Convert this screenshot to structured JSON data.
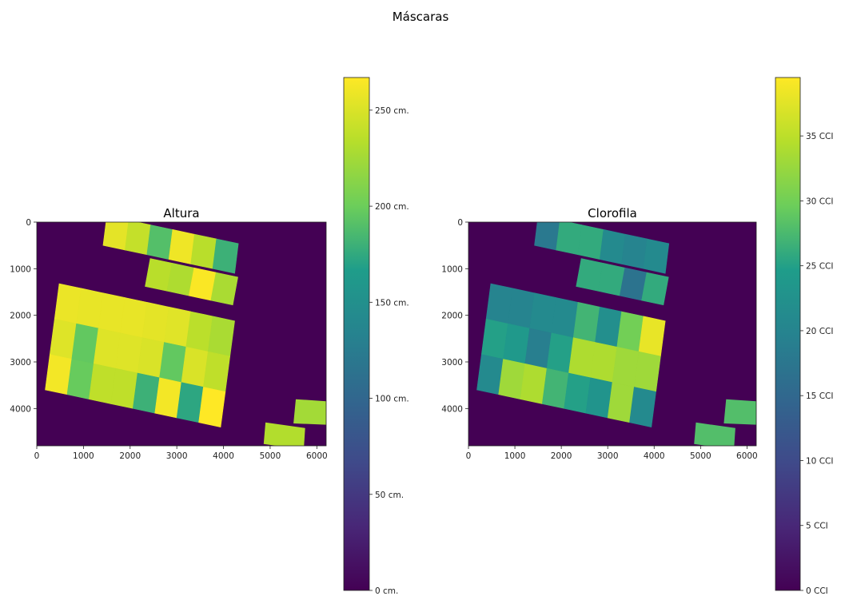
{
  "figure": {
    "title": "Máscaras"
  },
  "colors": {
    "background": "#440154",
    "viridis_stops": [
      "#440154",
      "#482777",
      "#3f4a8a",
      "#31678e",
      "#26838f",
      "#1f9d8a",
      "#6cce5a",
      "#b6de2b",
      "#fee825"
    ]
  },
  "chart_data": [
    {
      "type": "heatmap",
      "title": "Altura",
      "xlabel": "",
      "ylabel": "",
      "xlim": [
        0,
        6200
      ],
      "ylim": [
        4800,
        0
      ],
      "x_ticks": [
        "0",
        "1000",
        "2000",
        "3000",
        "4000",
        "5000",
        "6000"
      ],
      "y_ticks": [
        "0",
        "1000",
        "2000",
        "3000",
        "4000"
      ],
      "colorbar": {
        "range": [
          0,
          267
        ],
        "ticks": [
          {
            "value": 0,
            "label": "0  cm."
          },
          {
            "value": 50,
            "label": "50  cm."
          },
          {
            "value": 100,
            "label": "100 cm."
          },
          {
            "value": 150,
            "label": "150 cm."
          },
          {
            "value": 200,
            "label": "200 cm."
          },
          {
            "value": 250,
            "label": "250  cm."
          }
        ]
      },
      "top_block": [
        [
          255,
          240,
          190,
          260,
          235,
          180
        ],
        [
          235,
          230,
          265,
          228
        ]
      ],
      "main_block": [
        [
          258,
          257,
          257,
          257,
          255,
          253,
          236,
          228
        ],
        [
          252,
          196,
          252,
          252,
          250,
          196,
          250,
          238
        ],
        [
          262,
          198,
          238,
          238,
          180,
          262,
          173,
          268
        ]
      ],
      "side_plots": [
        225,
        232
      ]
    },
    {
      "type": "heatmap",
      "title": "Clorofila",
      "xlabel": "",
      "ylabel": "",
      "xlim": [
        0,
        6200
      ],
      "ylim": [
        4800,
        0
      ],
      "x_ticks": [
        "0",
        "1000",
        "2000",
        "3000",
        "4000",
        "5000",
        "6000"
      ],
      "y_ticks": [
        "0",
        "1000",
        "2000",
        "3000",
        "4000"
      ],
      "colorbar": {
        "range": [
          0,
          39.5
        ],
        "ticks": [
          {
            "value": 0,
            "label": "0 CCI"
          },
          {
            "value": 5,
            "label": "5  CCI"
          },
          {
            "value": 10,
            "label": "10 CCI"
          },
          {
            "value": 15,
            "label": "15 CCI"
          },
          {
            "value": 20,
            "label": "20 CCI"
          },
          {
            "value": 25,
            "label": "25 CCI"
          },
          {
            "value": 30,
            "label": "30 CCI"
          },
          {
            "value": 35,
            "label": "35 CCI"
          }
        ]
      },
      "top_block": [
        [
          18,
          26,
          26,
          21,
          20,
          21
        ],
        [
          26,
          26,
          17,
          26
        ]
      ],
      "main_block": [
        [
          20,
          20,
          21,
          21,
          27,
          22,
          30,
          38
        ],
        [
          25,
          24,
          19,
          25,
          34,
          34,
          33,
          33
        ],
        [
          21,
          33,
          34,
          27,
          25,
          23,
          33,
          21
        ]
      ],
      "side_plots": [
        28,
        28
      ]
    }
  ]
}
